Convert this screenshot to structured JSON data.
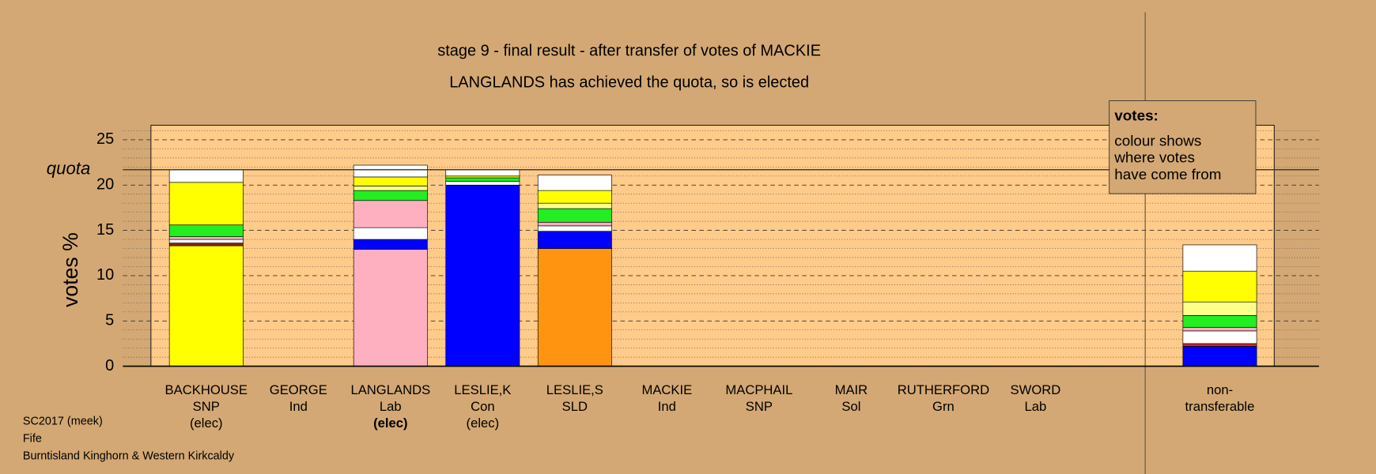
{
  "chart_data": {
    "type": "stacked-bar",
    "title": "stage 9 - final result - after transfer of votes of MACKIE",
    "subtitle": "LANGLANDS has achieved the quota, so is elected",
    "y_label": "votes %",
    "quota_label": "quota",
    "quota": 21.7,
    "ylim": [
      0,
      26.6
    ],
    "yticks": [
      0,
      5,
      10,
      15,
      20,
      25
    ],
    "minor_yticks": [
      1,
      2,
      3,
      4,
      6,
      7,
      8,
      9,
      11,
      12,
      13,
      14,
      16,
      17,
      18,
      19,
      21,
      22,
      23,
      24,
      26
    ],
    "categories": [
      "BACKHOUSE",
      "GEORGE",
      "LANGLANDS",
      "LESLIE,K",
      "LESLIE,S",
      "MACKIE",
      "MACPHAIL",
      "MAIR",
      "RUTHERFORD",
      "SWORD"
    ],
    "parties": [
      "SNP",
      "Ind",
      "Lab",
      "Con",
      "SLD",
      "Ind",
      "SNP",
      "Sol",
      "Grn",
      "Lab"
    ],
    "status": [
      "(elec)",
      null,
      "(elec)",
      "(elec)",
      null,
      null,
      null,
      null,
      null,
      null
    ],
    "stacks": [
      [
        {
          "value": 13.3,
          "color": "#ffff00"
        },
        {
          "value": 0.3,
          "color": "#8b2500"
        },
        {
          "value": 0.4,
          "color": "#ffffff"
        },
        {
          "value": 0.3,
          "color": "#ffb0c0"
        },
        {
          "value": 1.3,
          "color": "#22ee22"
        },
        {
          "value": 4.7,
          "color": "#ffff00"
        },
        {
          "value": 1.4,
          "color": "#ffffff"
        }
      ],
      [],
      [
        {
          "value": 12.9,
          "color": "#ffb0c0"
        },
        {
          "value": 1.1,
          "color": "#0000ff"
        },
        {
          "value": 1.3,
          "color": "#ffffff"
        },
        {
          "value": 3.0,
          "color": "#ffb0c0"
        },
        {
          "value": 1.1,
          "color": "#22ee22"
        },
        {
          "value": 0.5,
          "color": "#ffff88"
        },
        {
          "value": 1.0,
          "color": "#ffff00"
        },
        {
          "value": 1.3,
          "color": "#ffffff"
        }
      ],
      [
        {
          "value": 20.0,
          "color": "#0000ff"
        },
        {
          "value": 0.4,
          "color": "#ffffff"
        },
        {
          "value": 0.4,
          "color": "#22ee22"
        },
        {
          "value": 0.2,
          "color": "#ffff00"
        },
        {
          "value": 0.7,
          "color": "#ffffff"
        }
      ],
      [
        {
          "value": 13.0,
          "color": "#ff9410"
        },
        {
          "value": 1.9,
          "color": "#0000ff"
        },
        {
          "value": 0.6,
          "color": "#ffffff"
        },
        {
          "value": 0.4,
          "color": "#ffb0c0"
        },
        {
          "value": 1.5,
          "color": "#22ee22"
        },
        {
          "value": 0.6,
          "color": "#ffff88"
        },
        {
          "value": 1.4,
          "color": "#ffff00"
        },
        {
          "value": 1.7,
          "color": "#ffffff"
        }
      ],
      [],
      [],
      [],
      [],
      []
    ],
    "nontransferable_label": [
      "non-",
      "transferable"
    ],
    "nontransferable": [
      {
        "value": 2.2,
        "color": "#0000ff"
      },
      {
        "value": 0.3,
        "color": "#dd2222"
      },
      {
        "value": 1.4,
        "color": "#ffffff"
      },
      {
        "value": 0.4,
        "color": "#ffb0c0"
      },
      {
        "value": 1.3,
        "color": "#22ee22"
      },
      {
        "value": 1.5,
        "color": "#ffff88"
      },
      {
        "value": 3.4,
        "color": "#ffff00"
      },
      {
        "value": 2.9,
        "color": "#ffffff"
      }
    ],
    "legend_title": "votes:",
    "legend_lines": [
      "colour shows",
      "where votes",
      "have come from"
    ],
    "notes": [
      "SC2017 (meek)",
      "Fife",
      "Burntisland Kinghorn & Western Kirkcaldy"
    ]
  }
}
